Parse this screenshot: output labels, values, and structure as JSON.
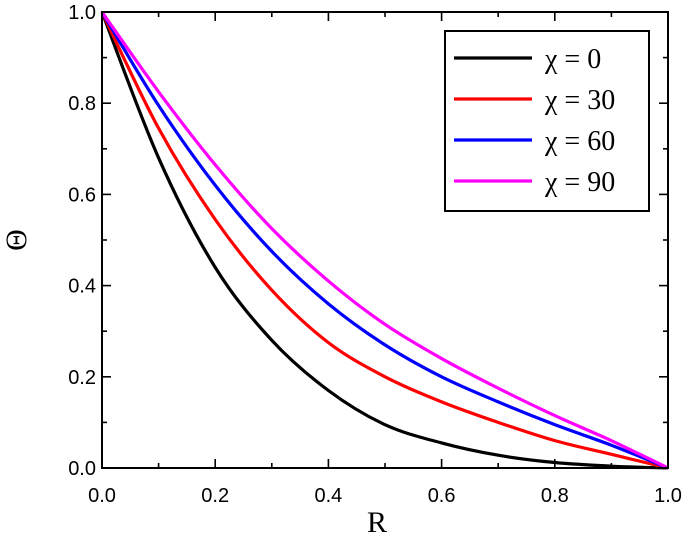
{
  "chart_data": {
    "type": "line",
    "xlabel": "R",
    "ylabel": "Θ",
    "xlim": [
      0,
      1
    ],
    "ylim": [
      0,
      1
    ],
    "xticks": [
      "0.0",
      "0.2",
      "0.4",
      "0.6",
      "0.8",
      "1.0"
    ],
    "yticks": [
      "0.0",
      "0.2",
      "0.4",
      "0.6",
      "0.8",
      "1.0"
    ],
    "grid": false,
    "legend_position": "top-right",
    "x": [
      0.0,
      0.1,
      0.2,
      0.3,
      0.4,
      0.5,
      0.6,
      0.7,
      0.8,
      0.9,
      1.0
    ],
    "series": [
      {
        "name": "χ = 0",
        "color": "#000000",
        "values": [
          1.0,
          0.68,
          0.44,
          0.28,
          0.17,
          0.095,
          0.055,
          0.028,
          0.012,
          0.004,
          0.0
        ]
      },
      {
        "name": "χ = 30",
        "color": "#ff0000",
        "values": [
          1.0,
          0.745,
          0.545,
          0.39,
          0.275,
          0.2,
          0.145,
          0.1,
          0.06,
          0.03,
          0.0
        ]
      },
      {
        "name": "χ = 60",
        "color": "#0000ff",
        "values": [
          1.0,
          0.795,
          0.62,
          0.475,
          0.36,
          0.27,
          0.2,
          0.145,
          0.095,
          0.05,
          0.0
        ]
      },
      {
        "name": "χ = 90",
        "color": "#ff00ff",
        "values": [
          1.0,
          0.825,
          0.665,
          0.525,
          0.41,
          0.315,
          0.24,
          0.175,
          0.115,
          0.06,
          0.0
        ]
      }
    ]
  }
}
